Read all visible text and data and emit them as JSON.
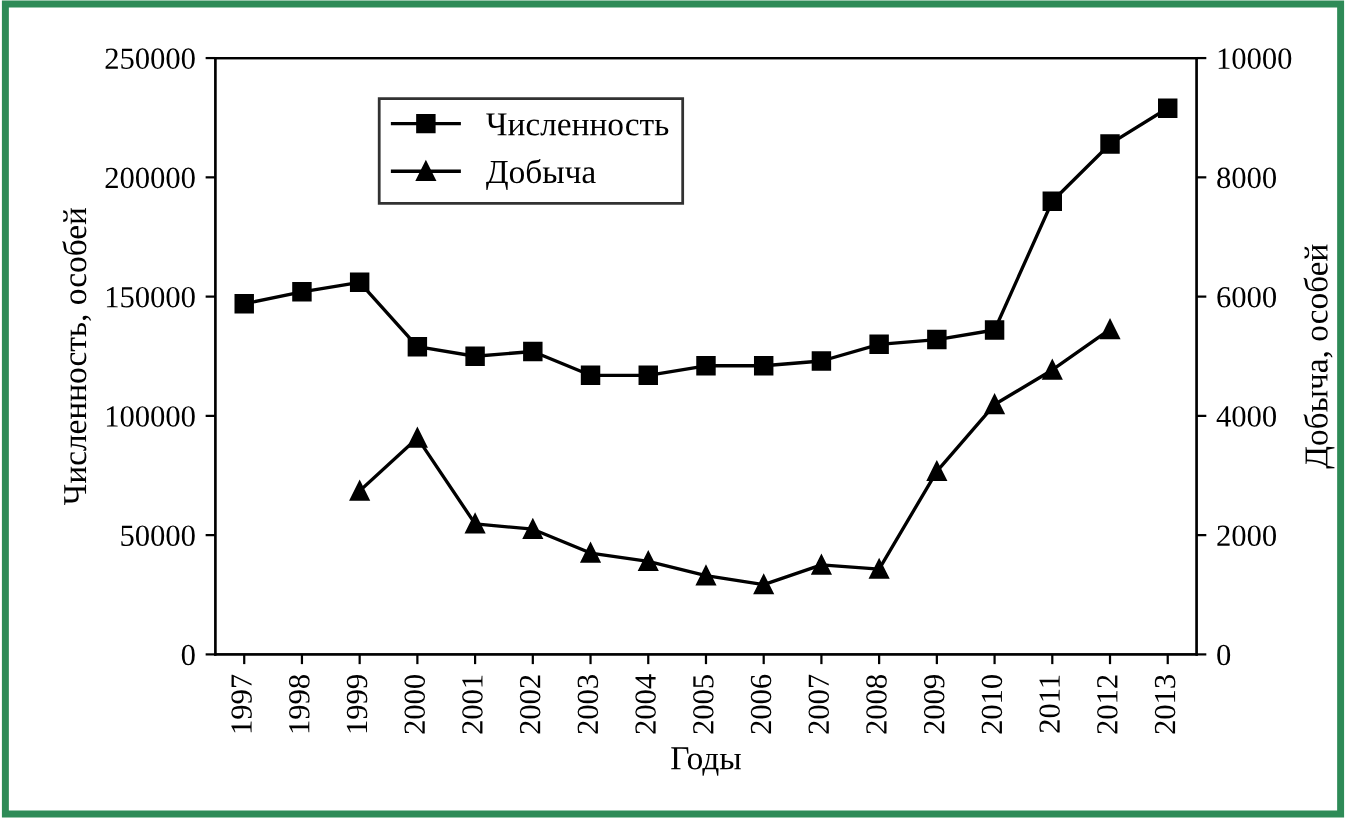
{
  "chart_data": {
    "type": "line",
    "xlabel": "Годы",
    "ylabel": "Численность, особей",
    "y2label": "Добыча, особей",
    "categories": [
      "1997",
      "1998",
      "1999",
      "2000",
      "2001",
      "2002",
      "2003",
      "2004",
      "2005",
      "2006",
      "2007",
      "2008",
      "2009",
      "2010",
      "2011",
      "2012",
      "2013"
    ],
    "series": [
      {
        "name": "Численность",
        "color": "#000000",
        "marker": "square",
        "values": [
          147000,
          152000,
          156000,
          129000,
          125000,
          127000,
          117000,
          117000,
          121000,
          121000,
          123000,
          130000,
          132000,
          136000,
          190000,
          214000,
          229000
        ]
      },
      {
        "name": "Добыча",
        "color": "#000000",
        "marker": "triangle",
        "axis": "y2",
        "values": [
          null,
          null,
          2740,
          3630,
          2190,
          2100,
          1700,
          1560,
          1320,
          1170,
          1500,
          1430,
          3070,
          4190,
          4770,
          5450,
          null
        ]
      }
    ],
    "ylim": [
      0,
      250000
    ],
    "yticks": [
      0,
      50000,
      100000,
      150000,
      200000,
      250000
    ],
    "y2lim": [
      0,
      10000
    ],
    "y2ticks": [
      0,
      2000,
      4000,
      6000,
      8000,
      10000
    ],
    "grid": false,
    "legend": "top left",
    "line_style": "solid"
  }
}
